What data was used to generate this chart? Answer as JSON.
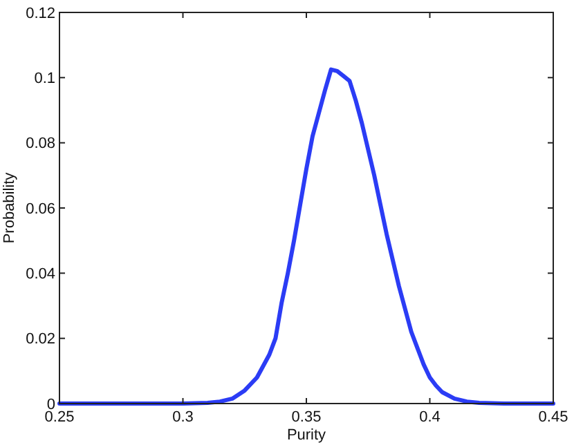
{
  "chart_data": {
    "type": "line",
    "xlabel": "Purity",
    "ylabel": "Probability",
    "x": [
      0.25,
      0.3,
      0.31,
      0.315,
      0.32,
      0.325,
      0.33,
      0.335,
      0.3375,
      0.34,
      0.3425,
      0.345,
      0.3475,
      0.35,
      0.3525,
      0.355,
      0.3575,
      0.36,
      0.3625,
      0.365,
      0.3675,
      0.37,
      0.3725,
      0.375,
      0.3775,
      0.38,
      0.3825,
      0.385,
      0.3875,
      0.39,
      0.3925,
      0.395,
      0.3975,
      0.4,
      0.4025,
      0.405,
      0.41,
      0.415,
      0.42,
      0.43,
      0.45
    ],
    "series": [
      {
        "color": "#2b3cf5",
        "values": [
          0,
          0,
          0.0002,
          0.0006,
          0.0015,
          0.004,
          0.008,
          0.015,
          0.02,
          0.031,
          0.04,
          0.05,
          0.061,
          0.072,
          0.082,
          0.089,
          0.096,
          0.1025,
          0.102,
          0.1005,
          0.099,
          0.093,
          0.086,
          0.078,
          0.07,
          0.061,
          0.052,
          0.044,
          0.036,
          0.029,
          0.022,
          0.017,
          0.012,
          0.008,
          0.0055,
          0.0035,
          0.0015,
          0.0006,
          0.0002,
          0,
          0
        ]
      }
    ],
    "xlim": [
      0.25,
      0.45
    ],
    "xticks": [
      0.25,
      0.3,
      0.35,
      0.4,
      0.45
    ],
    "ylim": [
      0,
      0.12
    ],
    "yticks": [
      0,
      0.02,
      0.04,
      0.06,
      0.08,
      0.1,
      0.12
    ],
    "grid": false,
    "line_style": "solid",
    "marker": "none"
  }
}
